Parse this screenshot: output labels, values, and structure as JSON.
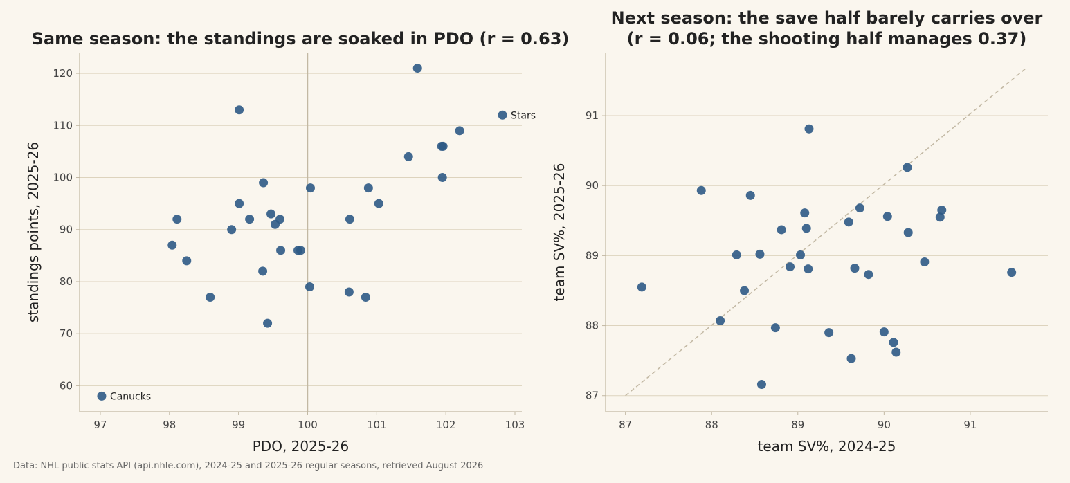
{
  "chart_data": [
    {
      "type": "scatter",
      "title": "Same season: the standings are soaked in PDO (r = 0.63)",
      "xlabel": "PDO, 2025-26",
      "ylabel": "standings points, 2025-26",
      "xlim": [
        96.7,
        103.1
      ],
      "ylim": [
        55,
        124
      ],
      "xticks": [
        97,
        98,
        99,
        100,
        101,
        102,
        103
      ],
      "yticks": [
        60,
        70,
        80,
        90,
        100,
        110,
        120
      ],
      "grid": "y",
      "reference_line": {
        "type": "vertical",
        "x": 100
      },
      "marker_color": "#2d5a85",
      "points": [
        {
          "x": 97.02,
          "y": 58,
          "label": "Canucks"
        },
        {
          "x": 98.04,
          "y": 87
        },
        {
          "x": 98.11,
          "y": 92
        },
        {
          "x": 98.25,
          "y": 84
        },
        {
          "x": 98.59,
          "y": 77
        },
        {
          "x": 98.9,
          "y": 90
        },
        {
          "x": 99.01,
          "y": 113
        },
        {
          "x": 99.01,
          "y": 95
        },
        {
          "x": 99.16,
          "y": 92
        },
        {
          "x": 99.35,
          "y": 82
        },
        {
          "x": 99.36,
          "y": 99
        },
        {
          "x": 99.42,
          "y": 72
        },
        {
          "x": 99.47,
          "y": 93
        },
        {
          "x": 99.53,
          "y": 91
        },
        {
          "x": 99.6,
          "y": 92
        },
        {
          "x": 99.61,
          "y": 86
        },
        {
          "x": 99.86,
          "y": 86
        },
        {
          "x": 99.9,
          "y": 86
        },
        {
          "x": 100.03,
          "y": 79
        },
        {
          "x": 100.04,
          "y": 98
        },
        {
          "x": 100.6,
          "y": 78
        },
        {
          "x": 100.61,
          "y": 92
        },
        {
          "x": 100.84,
          "y": 77
        },
        {
          "x": 100.88,
          "y": 98
        },
        {
          "x": 101.03,
          "y": 95
        },
        {
          "x": 101.46,
          "y": 104
        },
        {
          "x": 101.59,
          "y": 121
        },
        {
          "x": 101.94,
          "y": 106
        },
        {
          "x": 101.95,
          "y": 100
        },
        {
          "x": 101.96,
          "y": 106
        },
        {
          "x": 102.2,
          "y": 109
        },
        {
          "x": 102.82,
          "y": 112,
          "label": "Stars"
        }
      ]
    },
    {
      "type": "scatter",
      "title": "Next season: the save half barely carries over\n(r = 0.06; the shooting half manages 0.37)",
      "xlabel": "team SV%, 2024-25",
      "ylabel": "team SV%, 2025-26",
      "xlim": [
        86.77,
        91.9
      ],
      "ylim": [
        86.77,
        91.9
      ],
      "xticks": [
        87,
        88,
        89,
        90,
        91
      ],
      "yticks": [
        87,
        88,
        89,
        90,
        91
      ],
      "grid": "y",
      "reference_line": {
        "type": "diagonal",
        "from": [
          87,
          87
        ],
        "to": [
          91.65,
          91.68
        ]
      },
      "marker_color": "#2d5a85",
      "points": [
        {
          "x": 87.19,
          "y": 88.55
        },
        {
          "x": 87.88,
          "y": 89.93
        },
        {
          "x": 88.1,
          "y": 88.07
        },
        {
          "x": 88.29,
          "y": 89.01
        },
        {
          "x": 88.38,
          "y": 88.5
        },
        {
          "x": 88.45,
          "y": 89.86
        },
        {
          "x": 88.56,
          "y": 89.02
        },
        {
          "x": 88.58,
          "y": 87.16
        },
        {
          "x": 88.74,
          "y": 87.97
        },
        {
          "x": 88.81,
          "y": 89.37
        },
        {
          "x": 88.91,
          "y": 88.84
        },
        {
          "x": 89.03,
          "y": 89.01
        },
        {
          "x": 89.08,
          "y": 89.61
        },
        {
          "x": 89.1,
          "y": 89.39
        },
        {
          "x": 89.12,
          "y": 88.81
        },
        {
          "x": 89.13,
          "y": 90.81
        },
        {
          "x": 89.36,
          "y": 87.9
        },
        {
          "x": 89.59,
          "y": 89.48
        },
        {
          "x": 89.62,
          "y": 87.53
        },
        {
          "x": 89.66,
          "y": 88.82
        },
        {
          "x": 89.72,
          "y": 89.68
        },
        {
          "x": 89.82,
          "y": 88.73
        },
        {
          "x": 90.0,
          "y": 87.91
        },
        {
          "x": 90.04,
          "y": 89.56
        },
        {
          "x": 90.11,
          "y": 87.76
        },
        {
          "x": 90.14,
          "y": 87.62
        },
        {
          "x": 90.27,
          "y": 90.26
        },
        {
          "x": 90.28,
          "y": 89.33
        },
        {
          "x": 90.47,
          "y": 88.91
        },
        {
          "x": 90.65,
          "y": 89.55
        },
        {
          "x": 90.67,
          "y": 89.65
        },
        {
          "x": 91.48,
          "y": 88.76
        }
      ]
    }
  ],
  "footer": "Data: NHL public stats API (api.nhle.com), 2024-25 and 2025-26 regular seasons, retrieved August 2026"
}
